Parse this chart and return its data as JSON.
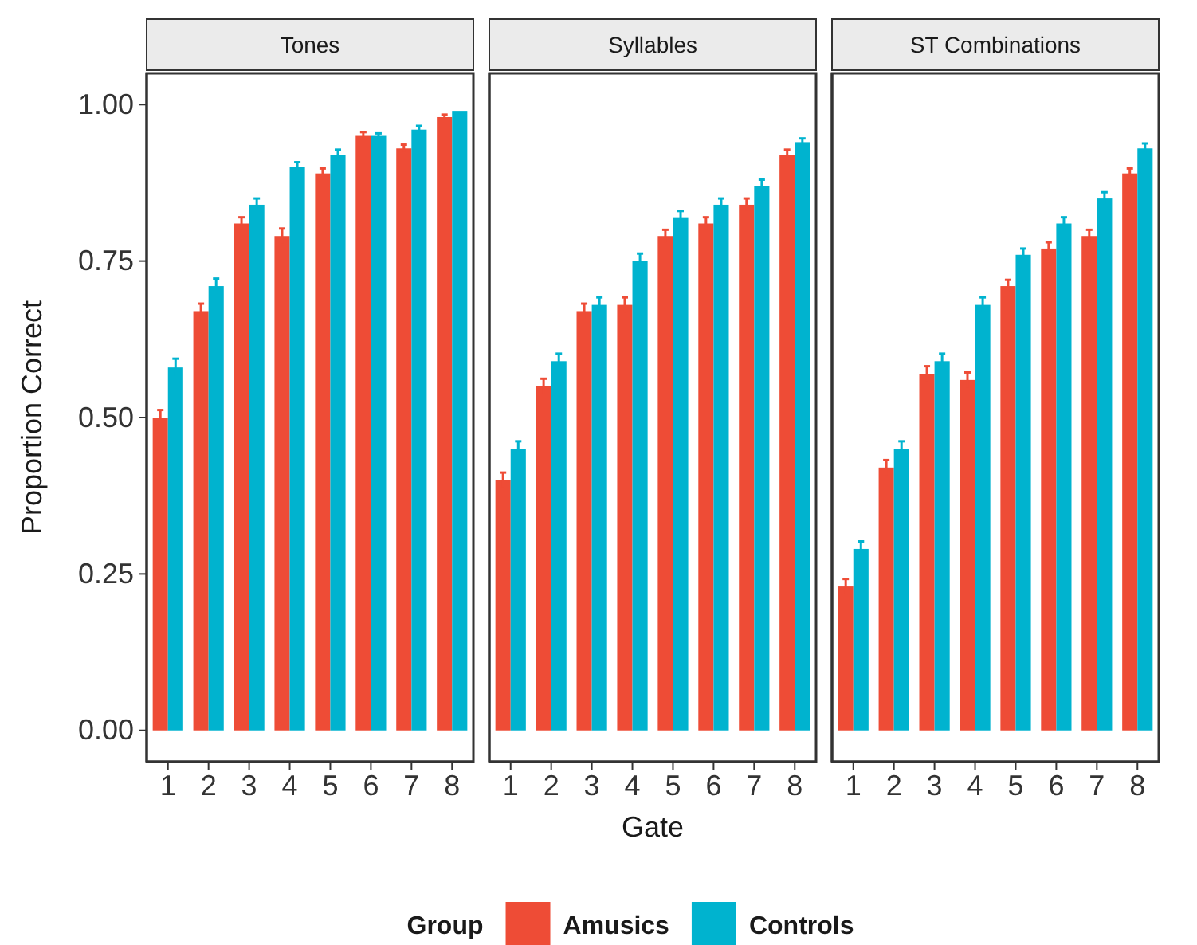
{
  "chart_data": [
    {
      "type": "bar",
      "title": "Tones",
      "ylabel": "Proportion Correct",
      "categories": [
        "1",
        "2",
        "3",
        "4",
        "5",
        "6",
        "7",
        "8"
      ],
      "ylim": [
        -0.05,
        1.05
      ],
      "yticks": [
        {
          "value": 0,
          "label": "0.00"
        },
        {
          "value": 0.25,
          "label": "0.25"
        },
        {
          "value": 0.5,
          "label": "0.50"
        },
        {
          "value": 0.75,
          "label": "0.75"
        },
        {
          "value": 1,
          "label": "1.00"
        }
      ],
      "grid": false,
      "legend": "bottom",
      "legend_title": "Group",
      "series": [
        {
          "name": "Amusics",
          "color": "#ee4c36",
          "values": [
            0.5,
            0.67,
            0.81,
            0.79,
            0.89,
            0.95,
            0.93,
            0.98
          ],
          "errors": [
            0.012,
            0.012,
            0.01,
            0.012,
            0.008,
            0.006,
            0.006,
            0.004
          ]
        },
        {
          "name": "Controls",
          "color": "#00b3cf",
          "values": [
            0.58,
            0.71,
            0.84,
            0.9,
            0.92,
            0.95,
            0.96,
            0.99
          ],
          "errors": [
            0.014,
            0.012,
            0.01,
            0.008,
            0.008,
            0.004,
            0.006,
            null
          ]
        }
      ]
    },
    {
      "type": "bar",
      "title": "Syllables",
      "xlabel": "Gate",
      "categories": [
        "1",
        "2",
        "3",
        "4",
        "5",
        "6",
        "7",
        "8"
      ],
      "ylim": [
        -0.05,
        1.05
      ],
      "grid": false,
      "tick_labels": "x",
      "series": [
        {
          "color": "#ee4c36",
          "values": [
            0.4,
            0.55,
            0.67,
            0.68,
            0.79,
            0.81,
            0.84,
            0.92
          ],
          "errors": [
            0.012,
            0.012,
            0.012,
            0.012,
            0.01,
            0.01,
            0.01,
            0.008
          ]
        },
        {
          "color": "#00b3cf",
          "values": [
            0.45,
            0.59,
            0.68,
            0.75,
            0.82,
            0.84,
            0.87,
            0.94
          ],
          "errors": [
            0.012,
            0.012,
            0.012,
            0.012,
            0.01,
            0.01,
            0.01,
            0.006
          ]
        }
      ]
    },
    {
      "type": "bar",
      "title": "ST Combinations",
      "categories": [
        "1",
        "2",
        "3",
        "4",
        "5",
        "6",
        "7",
        "8"
      ],
      "ylim": [
        -0.05,
        1.05
      ],
      "grid": false,
      "tick_labels": "x",
      "series": [
        {
          "color": "#ee4c36",
          "values": [
            0.23,
            0.42,
            0.57,
            0.56,
            0.71,
            0.77,
            0.79,
            0.89
          ],
          "errors": [
            0.012,
            0.012,
            0.012,
            0.012,
            0.01,
            0.01,
            0.01,
            0.008
          ]
        },
        {
          "color": "#00b3cf",
          "values": [
            0.29,
            0.45,
            0.59,
            0.68,
            0.76,
            0.81,
            0.85,
            0.93
          ],
          "errors": [
            0.012,
            0.012,
            0.012,
            0.012,
            0.01,
            0.01,
            0.01,
            0.008
          ]
        }
      ]
    }
  ]
}
